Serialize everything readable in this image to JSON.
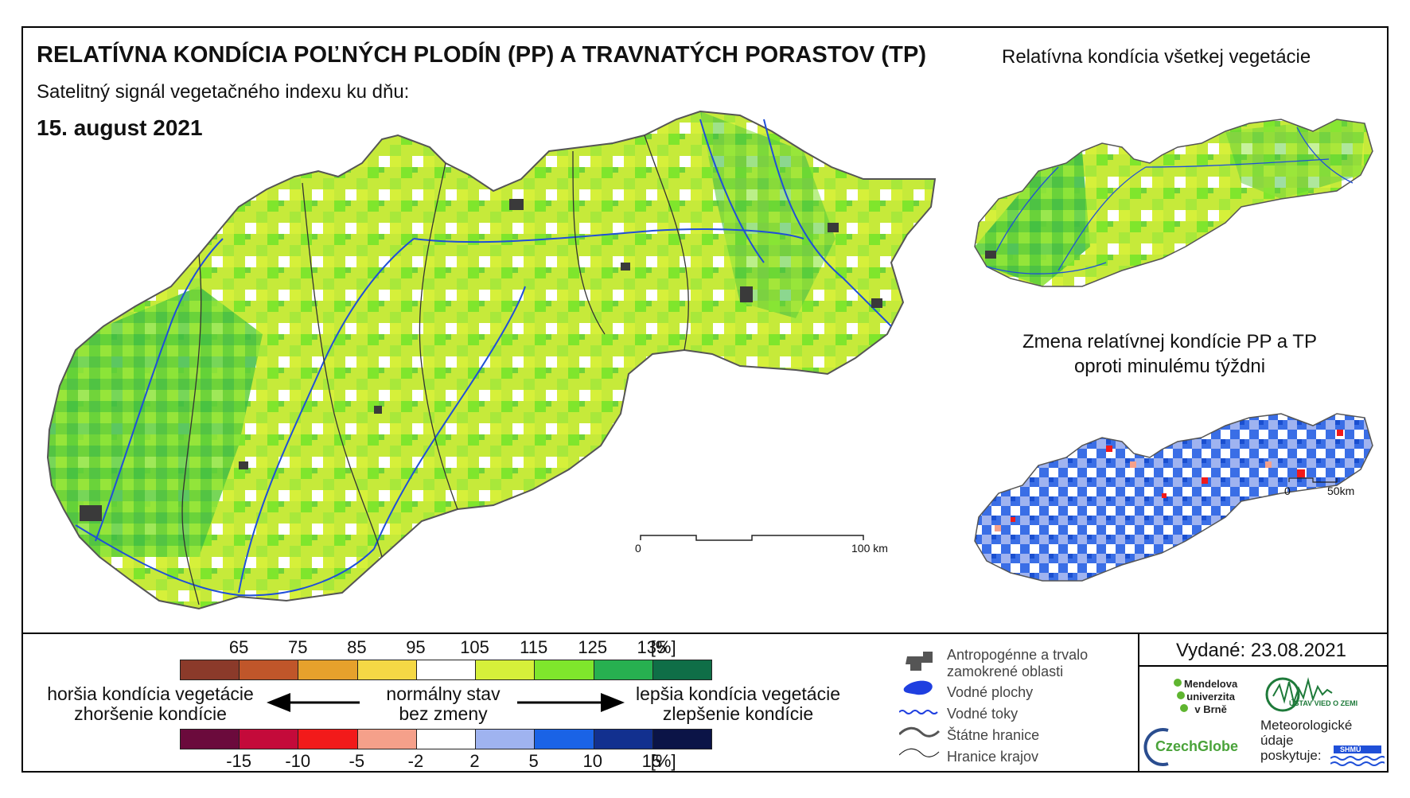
{
  "header": {
    "title": "RELATÍVNA KONDÍCIA POĽNÝCH PLODÍN (PP) A TRAVNATÝCH PORASTOV (TP)",
    "subtitle": "Satelitný signál vegetačného indexu ku dňu:",
    "date": "15. august 2021"
  },
  "insets": {
    "all_vegetation_title": "Relatívna kondícia všetkej vegetácie",
    "change_title_line1": "Zmena relatívnej kondície PP a TP",
    "change_title_line2": "oproti minulému týždni"
  },
  "scalebars": {
    "main": {
      "start": "0",
      "end": "100 km"
    },
    "inset": {
      "start": "0",
      "end": "50km"
    }
  },
  "legend": {
    "condition_ticks": [
      "65",
      "75",
      "85",
      "95",
      "105",
      "115",
      "125",
      "135",
      "[%]"
    ],
    "condition_colors": [
      "#8b3a2a",
      "#c0562a",
      "#e6a12c",
      "#f5d845",
      "#ffffff",
      "#d6f03a",
      "#7fe62c",
      "#27b050",
      "#0f6e47"
    ],
    "change_ticks": [
      "-15",
      "-10",
      "-5",
      "-2",
      "2",
      "5",
      "10",
      "15",
      "[%]"
    ],
    "change_colors": [
      "#6b0a3c",
      "#c40a3a",
      "#f21a1a",
      "#f5a08a",
      "#ffffff",
      "#9fb3f0",
      "#1a63e6",
      "#12308f",
      "#0b1447"
    ],
    "worse_line1": "horšia kondícia vegetácie",
    "worse_line2": "zhoršenie kondície",
    "normal_line1": "normálny stav",
    "normal_line2": "bez zmeny",
    "better_line1": "lepšia kondícia vegetácie",
    "better_line2": "zlepšenie kondície"
  },
  "symbols": {
    "urban_line1": "Antropogénne a trvalo",
    "urban_line2": "zamokrené oblasti",
    "water_bodies": "Vodné plochy",
    "rivers": "Vodné toky",
    "state_border": "Štátne hranice",
    "region_border": "Hranice krajov"
  },
  "footer": {
    "issued": "Vydané: 23.08.2021",
    "mendel_line1": "Mendelova",
    "mendel_line2": "univerzita",
    "mendel_line3": "v Brně",
    "czechglobe": "CzechGlobe",
    "institute": "ÚSTAV VIED O ZEMI",
    "meteo_line1": "Meteorologické",
    "meteo_line2": "údaje",
    "meteo_line3": "poskytuje:",
    "shmu": "SHMÚ"
  },
  "colors": {
    "river": "#1f4fd8",
    "urban": "#3a3a3a",
    "green_main": "#b7e33a"
  }
}
